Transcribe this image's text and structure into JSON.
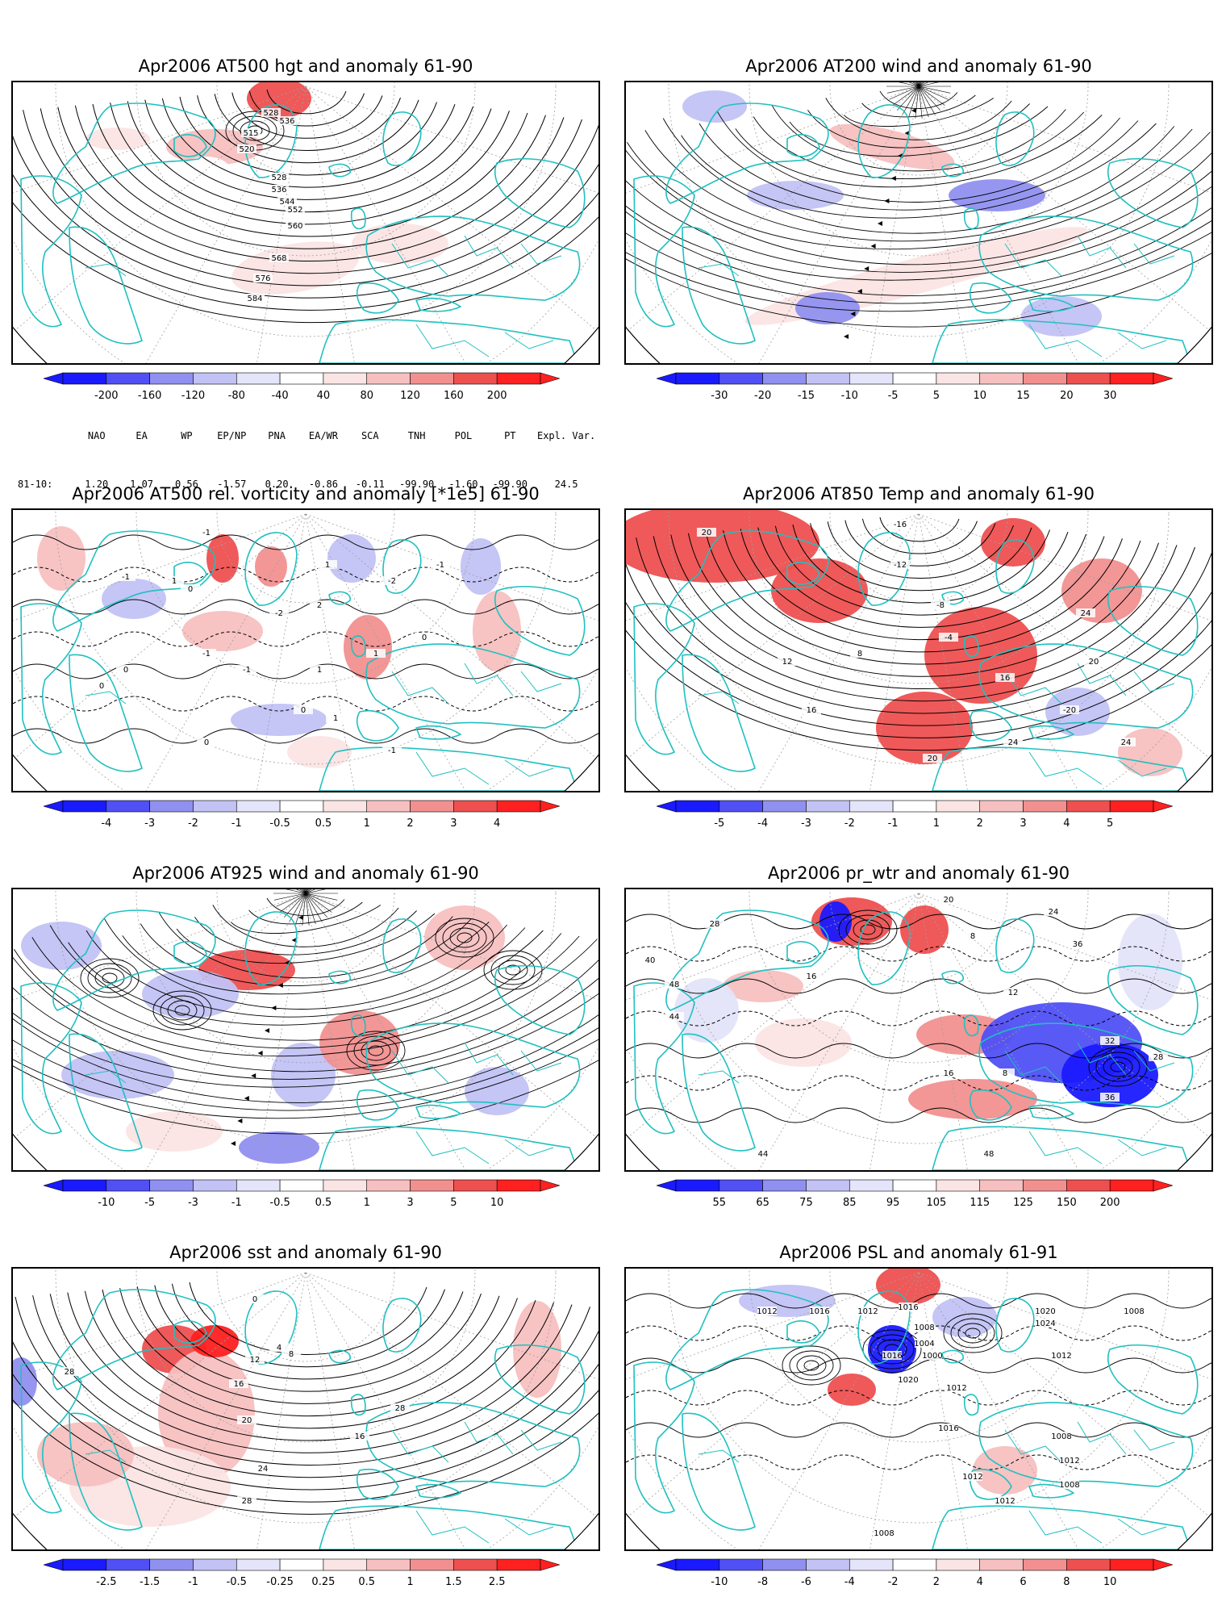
{
  "panels": [
    {
      "id": "at500-hgt",
      "title": "Apr2006 AT500 hgt and anomaly 61-90",
      "kind": "height",
      "colorbar": {
        "ticks": [
          "-200",
          "-160",
          "-120",
          "-80",
          "-40",
          "40",
          "80",
          "120",
          "160",
          "200"
        ]
      },
      "contour_labels": [
        "528",
        "536",
        "515",
        "520",
        "528",
        "536",
        "544",
        "552",
        "560",
        "568",
        "576",
        "584"
      ]
    },
    {
      "id": "at200-wind",
      "title": "Apr2006 AT200 wind and anomaly 61-90",
      "kind": "wind",
      "colorbar": {
        "ticks": [
          "-30",
          "-20",
          "-15",
          "-10",
          "-5",
          "5",
          "10",
          "15",
          "20",
          "30"
        ]
      },
      "contour_labels": []
    },
    {
      "id": "at500-vort",
      "title": "Apr2006 AT500 rel. vorticity and anomaly [*1e5] 61-90",
      "kind": "vorticity",
      "colorbar": {
        "ticks": [
          "-4",
          "-3",
          "-2",
          "-1",
          "-0.5",
          "0.5",
          "1",
          "2",
          "3",
          "4"
        ]
      },
      "contour_labels": [
        "-1",
        "-1",
        "1",
        "0",
        "-2",
        "2",
        "1",
        "-1",
        "0",
        "-1",
        "1",
        "-1",
        "0",
        "1",
        "-2",
        "0",
        "0",
        "-1",
        "1",
        "0"
      ]
    },
    {
      "id": "at850-temp",
      "title": "Apr2006 AT850 Temp and anomaly 61-90",
      "kind": "temperature",
      "colorbar": {
        "ticks": [
          "-5",
          "-4",
          "-3",
          "-2",
          "-1",
          "1",
          "2",
          "3",
          "4",
          "5"
        ]
      },
      "contour_labels": [
        "-16",
        "20",
        "-12",
        "-8",
        "-4",
        "12",
        "8",
        "16",
        "20",
        "24",
        "16",
        "24",
        "-20",
        "20",
        "24"
      ]
    },
    {
      "id": "at925-wind",
      "title": "Apr2006 AT925 wind and anomaly 61-90",
      "kind": "wind",
      "colorbar": {
        "ticks": [
          "-10",
          "-5",
          "-3",
          "-1",
          "-0.5",
          "0.5",
          "1",
          "3",
          "5",
          "10"
        ]
      },
      "contour_labels": []
    },
    {
      "id": "pr-wtr",
      "title": "Apr2006 pr_wtr and anomaly 61-90",
      "kind": "precipwater",
      "colorbar": {
        "ticks": [
          "55",
          "65",
          "75",
          "85",
          "95",
          "105",
          "115",
          "125",
          "150",
          "200"
        ]
      },
      "contour_labels": [
        "20",
        "24",
        "28",
        "16",
        "12",
        "8",
        "36",
        "40",
        "48",
        "44",
        "32",
        "28",
        "16",
        "8",
        "36",
        "44",
        "48"
      ]
    },
    {
      "id": "sst",
      "title": "Apr2006 sst and anomaly 61-90",
      "kind": "sst",
      "colorbar": {
        "ticks": [
          "-2.5",
          "-1.5",
          "-1",
          "-0.5",
          "-0.25",
          "0.25",
          "0.5",
          "1",
          "1.5",
          "2.5"
        ]
      },
      "contour_labels": [
        "28",
        "4",
        "8",
        "12",
        "16",
        "20",
        "24",
        "28",
        "16",
        "0",
        "28"
      ]
    },
    {
      "id": "psl",
      "title": "Apr2006 PSL and anomaly 61-91",
      "kind": "pressure",
      "colorbar": {
        "ticks": [
          "-10",
          "-8",
          "-6",
          "-4",
          "-2",
          "2",
          "4",
          "6",
          "8",
          "10"
        ]
      },
      "contour_labels": [
        "1012",
        "1016",
        "1012",
        "1016",
        "1008",
        "1004",
        "1000",
        "1020",
        "1016",
        "1012",
        "1020",
        "1024",
        "1008",
        "1012",
        "1016",
        "1008",
        "1012",
        "1008",
        "1012",
        "1008",
        "1012"
      ]
    }
  ],
  "indices": {
    "headers": [
      "NAO",
      "EA",
      "WP",
      "EP/NP",
      "PNA",
      "EA/WR",
      "SCA",
      "TNH",
      "POL",
      "PT",
      "Expl. Var."
    ],
    "row_label": "81-10:",
    "values": [
      "1.20",
      "1.07",
      "0.56",
      "-1.57",
      "0.20",
      "-0.86",
      "-0.11",
      "-99.90",
      "-1.60",
      "-99.90",
      "24.5"
    ]
  },
  "colors": {
    "blue4": "#1a1aff",
    "blue3": "#5050f5",
    "blue2": "#9090f0",
    "blue1": "#c2c2f5",
    "blue0": "#e4e4fa",
    "red0": "#fbe4e4",
    "red1": "#f7c0c0",
    "red2": "#f29090",
    "red3": "#ee5050",
    "red4": "#ff2020",
    "coast": "#20c0c0",
    "contour": "#000000",
    "grid": "#a0a0a0"
  }
}
